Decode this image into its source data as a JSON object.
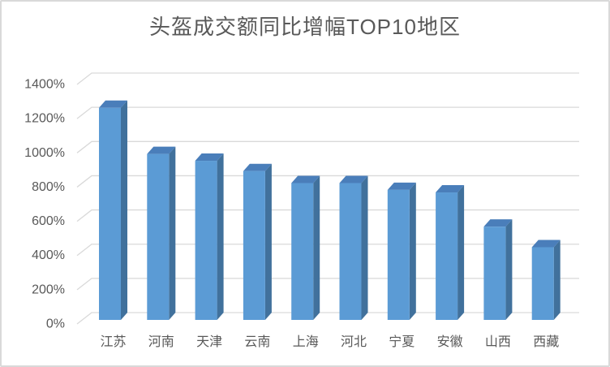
{
  "chart_data": {
    "type": "bar",
    "style": "3d-column",
    "title": "头盔成交额同比增幅TOP10地区",
    "categories": [
      "江苏",
      "河南",
      "天津",
      "云南",
      "上海",
      "河北",
      "宁夏",
      "安徽",
      "山西",
      "西藏"
    ],
    "values": [
      1240,
      970,
      930,
      870,
      800,
      800,
      760,
      745,
      545,
      425
    ],
    "unit": "%",
    "xlabel": "",
    "ylabel": "",
    "ylim": [
      0,
      1400
    ],
    "ytick_step": 200,
    "ytick_labels": [
      "0%",
      "200%",
      "400%",
      "600%",
      "800%",
      "1000%",
      "1200%",
      "1400%"
    ],
    "grid": true,
    "legend": false,
    "colors": {
      "bar_front": "#5B9BD5",
      "bar_side": "#41719C",
      "bar_top": "#4A7EBA",
      "gridline": "#D9D9D9",
      "axis_text": "#595959",
      "title_text": "#595959",
      "frame_border": "#D9D9D9",
      "background": "#FFFFFF"
    }
  }
}
